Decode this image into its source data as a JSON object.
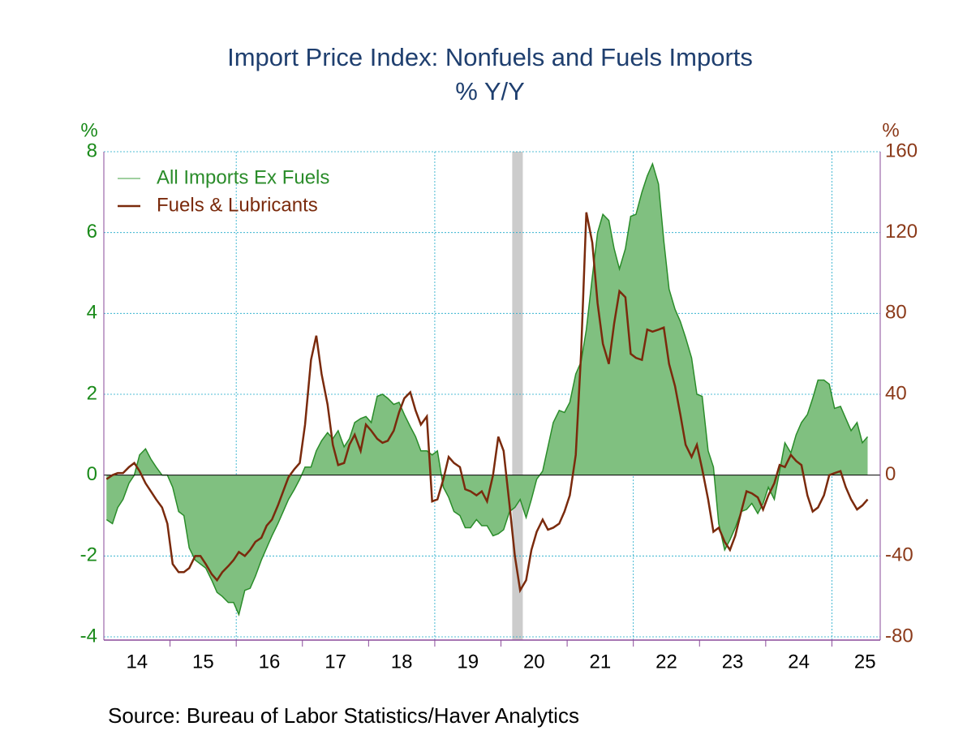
{
  "chart_data": {
    "type": "line",
    "title": "Import Price Index: Nonfuels and Fuels Imports",
    "subtitle": "% Y/Y",
    "y_unit": "%",
    "y2_unit": "%",
    "source": "Source:  Bureau of Labor Statistics/Haver Analytics",
    "xlim": [
      2014,
      2025.73
    ],
    "xticks": [
      {
        "value": 2014.5,
        "label": "14"
      },
      {
        "value": 2015.5,
        "label": "15"
      },
      {
        "value": 2016.5,
        "label": "16"
      },
      {
        "value": 2017.5,
        "label": "17"
      },
      {
        "value": 2018.5,
        "label": "18"
      },
      {
        "value": 2019.5,
        "label": "19"
      },
      {
        "value": 2020.5,
        "label": "20"
      },
      {
        "value": 2021.5,
        "label": "21"
      },
      {
        "value": 2022.5,
        "label": "22"
      },
      {
        "value": 2023.5,
        "label": "23"
      },
      {
        "value": 2024.5,
        "label": "24"
      },
      {
        "value": 2025.5,
        "label": "25"
      }
    ],
    "xgrid": [
      2016,
      2019,
      2022,
      2025
    ],
    "shaded_x": [
      2020.17,
      2020.33
    ],
    "ylim": [
      -4,
      8
    ],
    "yticks": [
      -4,
      -2,
      0,
      2,
      4,
      6,
      8
    ],
    "y2lim": [
      -80,
      160
    ],
    "y2ticks": [
      -80,
      -40,
      0,
      40,
      80,
      120,
      160
    ],
    "grid": true,
    "legend": "upper left",
    "x": [
      2014.04,
      2014.13,
      2014.21,
      2014.29,
      2014.38,
      2014.46,
      2014.54,
      2014.63,
      2014.71,
      2014.79,
      2014.88,
      2014.96,
      2015.04,
      2015.13,
      2015.21,
      2015.29,
      2015.38,
      2015.46,
      2015.54,
      2015.63,
      2015.71,
      2015.79,
      2015.88,
      2015.96,
      2016.04,
      2016.13,
      2016.21,
      2016.29,
      2016.38,
      2016.46,
      2016.54,
      2016.63,
      2016.71,
      2016.79,
      2016.88,
      2016.96,
      2017.04,
      2017.13,
      2017.21,
      2017.29,
      2017.38,
      2017.46,
      2017.54,
      2017.63,
      2017.71,
      2017.79,
      2017.88,
      2017.96,
      2018.04,
      2018.13,
      2018.21,
      2018.29,
      2018.38,
      2018.46,
      2018.54,
      2018.63,
      2018.71,
      2018.79,
      2018.88,
      2018.96,
      2019.04,
      2019.13,
      2019.21,
      2019.29,
      2019.38,
      2019.46,
      2019.54,
      2019.63,
      2019.71,
      2019.79,
      2019.88,
      2019.96,
      2020.04,
      2020.13,
      2020.21,
      2020.29,
      2020.38,
      2020.46,
      2020.54,
      2020.63,
      2020.71,
      2020.79,
      2020.88,
      2020.96,
      2021.04,
      2021.13,
      2021.21,
      2021.29,
      2021.38,
      2021.46,
      2021.54,
      2021.63,
      2021.71,
      2021.79,
      2021.88,
      2021.96,
      2022.04,
      2022.13,
      2022.21,
      2022.29,
      2022.38,
      2022.46,
      2022.54,
      2022.63,
      2022.71,
      2022.79,
      2022.88,
      2022.96,
      2023.04,
      2023.13,
      2023.21,
      2023.29,
      2023.38,
      2023.46,
      2023.54,
      2023.63,
      2023.71,
      2023.79,
      2023.88,
      2023.96,
      2024.04,
      2024.13,
      2024.21,
      2024.29,
      2024.38,
      2024.46,
      2024.54,
      2024.63,
      2024.71,
      2024.79,
      2024.88,
      2024.96,
      2025.04,
      2025.13,
      2025.21,
      2025.29,
      2025.38,
      2025.46,
      2025.54
    ],
    "series": [
      {
        "name": "All Imports Ex Fuels",
        "color": "#2a8c2a",
        "fill": "#80c080",
        "axis": "y",
        "values": [
          -1.1,
          -1.2,
          -0.8,
          -0.6,
          -0.2,
          0.0,
          0.5,
          0.65,
          0.4,
          0.2,
          0.0,
          0.0,
          -0.3,
          -0.9,
          -1.0,
          -1.8,
          -2.1,
          -2.2,
          -2.3,
          -2.6,
          -2.9,
          -3.0,
          -3.15,
          -3.15,
          -3.45,
          -2.85,
          -2.8,
          -2.5,
          -2.1,
          -1.8,
          -1.5,
          -1.2,
          -0.9,
          -0.6,
          -0.35,
          -0.1,
          0.2,
          0.2,
          0.6,
          0.85,
          1.05,
          0.9,
          1.1,
          0.7,
          0.9,
          1.3,
          1.4,
          1.45,
          1.3,
          1.95,
          2.0,
          1.9,
          1.75,
          1.8,
          1.5,
          1.2,
          0.95,
          0.6,
          0.6,
          0.5,
          0.6,
          -0.3,
          -0.55,
          -0.9,
          -1.0,
          -1.3,
          -1.3,
          -1.1,
          -1.25,
          -1.25,
          -1.5,
          -1.45,
          -1.35,
          -0.9,
          -0.8,
          -0.6,
          -1.05,
          -0.6,
          -0.1,
          0.1,
          0.7,
          1.3,
          1.6,
          1.55,
          1.8,
          2.5,
          2.8,
          3.6,
          4.9,
          6.0,
          6.45,
          6.3,
          5.6,
          5.1,
          5.6,
          6.4,
          6.45,
          7.0,
          7.4,
          7.7,
          7.2,
          5.8,
          4.6,
          4.1,
          3.8,
          3.4,
          2.9,
          2.0,
          1.95,
          0.6,
          0.2,
          -1.2,
          -1.85,
          -1.6,
          -1.3,
          -0.9,
          -0.85,
          -0.7,
          -0.95,
          -0.7,
          -0.3,
          -0.6,
          0.1,
          0.8,
          0.55,
          1.0,
          1.3,
          1.5,
          1.9,
          2.35,
          2.35,
          2.25,
          1.65,
          1.7,
          1.4,
          1.1,
          1.3,
          0.8,
          0.95
        ]
      },
      {
        "name": "Fuels & Lubricants",
        "color": "#7a2a0c",
        "axis": "y2",
        "values": [
          -2,
          0,
          1,
          1,
          4,
          6,
          2,
          -4,
          -8,
          -12,
          -16,
          -24,
          -44,
          -48,
          -48,
          -46,
          -40,
          -40,
          -44,
          -49,
          -52,
          -48,
          -45,
          -42,
          -38,
          -40,
          -37,
          -33,
          -31,
          -25,
          -22,
          -15,
          -8,
          -1,
          3,
          6,
          25,
          57,
          69,
          50,
          35,
          15,
          5,
          6,
          15,
          20,
          12,
          25,
          22,
          18,
          16,
          17,
          22,
          31,
          38,
          41,
          32,
          25,
          29,
          -13,
          -12,
          -2,
          9,
          6,
          4,
          -7,
          -8,
          -10,
          -8,
          -13,
          0,
          19,
          12,
          -15,
          -40,
          -57,
          -52,
          -37,
          -28,
          -22,
          -27,
          -26,
          -24,
          -18,
          -10,
          10,
          60,
          130,
          115,
          85,
          65,
          55,
          75,
          91,
          88,
          60,
          58,
          57,
          72,
          71,
          72,
          73,
          55,
          44,
          30,
          15,
          9,
          15,
          3,
          -12,
          -28,
          -26,
          -33,
          -37,
          -30,
          -18,
          -8,
          -9,
          -11,
          -17,
          -10,
          -4,
          5,
          4,
          10,
          7,
          5,
          -10,
          -18,
          -16,
          -10,
          0,
          1,
          2,
          -6,
          -12,
          -17,
          -15,
          -12
        ]
      }
    ]
  }
}
